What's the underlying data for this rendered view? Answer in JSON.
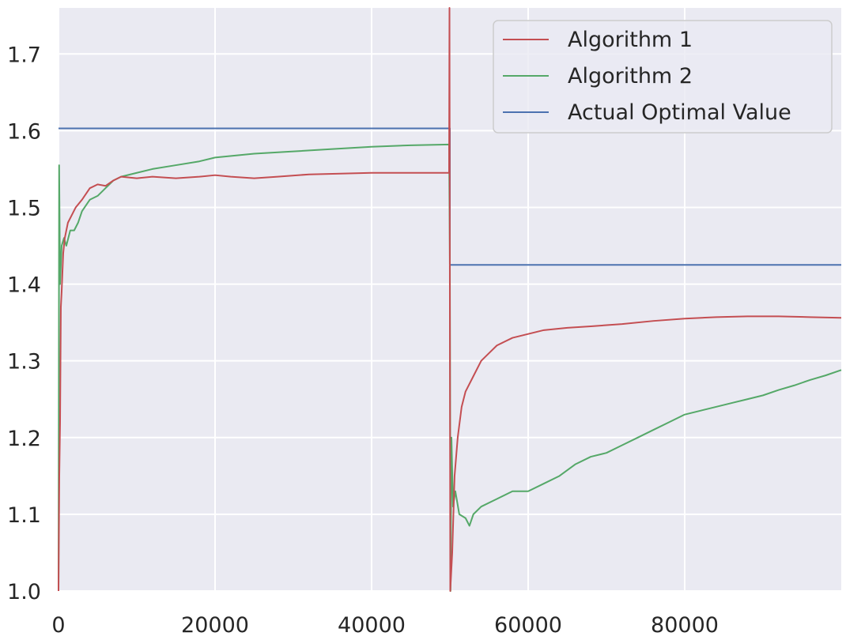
{
  "chart_data": {
    "type": "line",
    "xlim": [
      0,
      100000
    ],
    "ylim": [
      1.0,
      1.76
    ],
    "x_ticks": [
      0,
      20000,
      40000,
      60000,
      80000
    ],
    "x_tick_labels": [
      "0",
      "20000",
      "40000",
      "60000",
      "80000"
    ],
    "y_ticks": [
      1.0,
      1.1,
      1.2,
      1.3,
      1.4,
      1.5,
      1.6,
      1.7
    ],
    "y_tick_labels": [
      "1.0",
      "1.1",
      "1.2",
      "1.3",
      "1.4",
      "1.5",
      "1.6",
      "1.7"
    ],
    "grid": true,
    "legend_position": "top-right",
    "series": [
      {
        "name": "Algorithm 1",
        "color": "#c44e52",
        "points": [
          [
            0,
            1.0
          ],
          [
            100,
            1.15
          ],
          [
            200,
            1.22
          ],
          [
            300,
            1.37
          ],
          [
            400,
            1.39
          ],
          [
            600,
            1.44
          ],
          [
            800,
            1.46
          ],
          [
            1200,
            1.48
          ],
          [
            1700,
            1.49
          ],
          [
            2200,
            1.5
          ],
          [
            3000,
            1.51
          ],
          [
            4000,
            1.525
          ],
          [
            5000,
            1.53
          ],
          [
            6000,
            1.528
          ],
          [
            7000,
            1.535
          ],
          [
            8000,
            1.54
          ],
          [
            10000,
            1.538
          ],
          [
            12000,
            1.54
          ],
          [
            15000,
            1.538
          ],
          [
            18000,
            1.54
          ],
          [
            20000,
            1.542
          ],
          [
            22000,
            1.54
          ],
          [
            25000,
            1.538
          ],
          [
            28000,
            1.54
          ],
          [
            32000,
            1.543
          ],
          [
            36000,
            1.544
          ],
          [
            40000,
            1.545
          ],
          [
            45000,
            1.545
          ],
          [
            49900,
            1.545
          ],
          [
            49950,
            1.76
          ],
          [
            50050,
            1.0
          ],
          [
            50300,
            1.05
          ],
          [
            50600,
            1.15
          ],
          [
            51000,
            1.2
          ],
          [
            51500,
            1.24
          ],
          [
            52000,
            1.26
          ],
          [
            53000,
            1.28
          ],
          [
            54000,
            1.3
          ],
          [
            55000,
            1.31
          ],
          [
            56000,
            1.32
          ],
          [
            57000,
            1.325
          ],
          [
            58000,
            1.33
          ],
          [
            60000,
            1.335
          ],
          [
            62000,
            1.34
          ],
          [
            65000,
            1.343
          ],
          [
            68000,
            1.345
          ],
          [
            72000,
            1.348
          ],
          [
            76000,
            1.352
          ],
          [
            80000,
            1.355
          ],
          [
            84000,
            1.357
          ],
          [
            88000,
            1.358
          ],
          [
            92000,
            1.358
          ],
          [
            96000,
            1.357
          ],
          [
            100000,
            1.356
          ]
        ]
      },
      {
        "name": "Algorithm 2",
        "color": "#55a868",
        "points": [
          [
            0,
            1.0
          ],
          [
            80,
            1.555
          ],
          [
            200,
            1.4
          ],
          [
            400,
            1.45
          ],
          [
            700,
            1.46
          ],
          [
            1000,
            1.45
          ],
          [
            1500,
            1.47
          ],
          [
            2000,
            1.47
          ],
          [
            2500,
            1.48
          ],
          [
            3000,
            1.495
          ],
          [
            4000,
            1.51
          ],
          [
            5000,
            1.515
          ],
          [
            6000,
            1.525
          ],
          [
            7000,
            1.535
          ],
          [
            8000,
            1.54
          ],
          [
            10000,
            1.545
          ],
          [
            12000,
            1.55
          ],
          [
            15000,
            1.555
          ],
          [
            18000,
            1.56
          ],
          [
            20000,
            1.565
          ],
          [
            25000,
            1.57
          ],
          [
            30000,
            1.573
          ],
          [
            35000,
            1.576
          ],
          [
            40000,
            1.579
          ],
          [
            45000,
            1.581
          ],
          [
            49900,
            1.582
          ],
          [
            50000,
            1.425
          ],
          [
            50080,
            1.0
          ],
          [
            50200,
            1.2
          ],
          [
            50400,
            1.11
          ],
          [
            50700,
            1.13
          ],
          [
            51200,
            1.1
          ],
          [
            52000,
            1.095
          ],
          [
            52500,
            1.085
          ],
          [
            53000,
            1.1
          ],
          [
            54000,
            1.11
          ],
          [
            56000,
            1.12
          ],
          [
            58000,
            1.13
          ],
          [
            60000,
            1.13
          ],
          [
            62000,
            1.14
          ],
          [
            64000,
            1.15
          ],
          [
            66000,
            1.165
          ],
          [
            68000,
            1.175
          ],
          [
            70000,
            1.18
          ],
          [
            72000,
            1.19
          ],
          [
            74000,
            1.2
          ],
          [
            76000,
            1.21
          ],
          [
            78000,
            1.22
          ],
          [
            80000,
            1.23
          ],
          [
            82000,
            1.235
          ],
          [
            84000,
            1.24
          ],
          [
            86000,
            1.245
          ],
          [
            88000,
            1.25
          ],
          [
            90000,
            1.255
          ],
          [
            92000,
            1.262
          ],
          [
            94000,
            1.268
          ],
          [
            96000,
            1.275
          ],
          [
            98000,
            1.281
          ],
          [
            100000,
            1.288
          ]
        ]
      },
      {
        "name": "Actual Optimal Value",
        "color": "#4c72b0",
        "points": [
          [
            0,
            1.603
          ],
          [
            50000,
            1.603
          ],
          [
            50000,
            1.425
          ],
          [
            100000,
            1.425
          ]
        ]
      }
    ]
  }
}
